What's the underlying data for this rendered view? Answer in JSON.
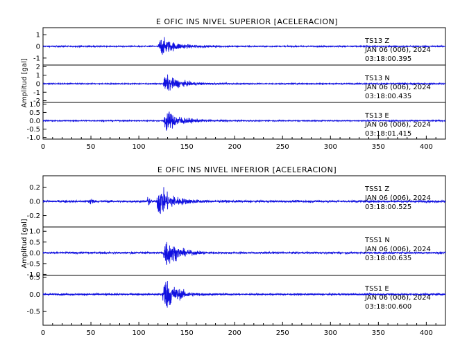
{
  "chart_data": [
    {
      "type": "line",
      "title": "E OFIC INS NIVEL SUPERIOR [ACELERACION]",
      "ylabel": "Amplitud [gal]",
      "xlabel": "",
      "xlim": [
        0,
        420
      ],
      "x_ticks": [
        "0",
        "50",
        "100",
        "150",
        "200",
        "250",
        "300",
        "350",
        "400"
      ],
      "line_color": "#1010e0",
      "grid": false,
      "traces": [
        {
          "station": "TS13",
          "component": "Z",
          "date": "JAN 06 (006), 2024",
          "time": "03:18:00.395",
          "ylim": [
            -1.6,
            1.6
          ],
          "y_ticks": [
            "-1",
            "0",
            "1"
          ],
          "noise": 0.06,
          "event_onset": 120,
          "event_peak": 1.2,
          "event_duration": 45
        },
        {
          "station": "TS13",
          "component": "N",
          "date": "JAN 06 (006), 2024",
          "time": "03:18:00.435",
          "ylim": [
            -2.2,
            2.2
          ],
          "y_ticks": [
            "-2",
            "-1",
            "0",
            "1",
            "2"
          ],
          "noise": 0.08,
          "event_onset": 125,
          "event_peak": 1.5,
          "event_duration": 45
        },
        {
          "station": "TS13",
          "component": "E",
          "date": "JAN 06 (006), 2024",
          "time": "03:18:01.415",
          "ylim": [
            -1.1,
            1.1
          ],
          "y_ticks": [
            "-1.0",
            "-0.5",
            "0.0",
            "0.5",
            "1.0"
          ],
          "noise": 0.04,
          "event_onset": 125,
          "event_peak": 0.95,
          "event_duration": 45
        }
      ]
    },
    {
      "type": "line",
      "title": "E OFIC INS NIVEL INFERIOR [ACELERACION]",
      "ylabel": "Amplitud [gal]",
      "xlabel": "",
      "xlim": [
        0,
        420
      ],
      "x_ticks": [
        "0",
        "50",
        "100",
        "150",
        "200",
        "250",
        "300",
        "350",
        "400"
      ],
      "line_color": "#1010e0",
      "grid": false,
      "traces": [
        {
          "station": "TSS1",
          "component": "Z",
          "date": "JAN 06 (006), 2024",
          "time": "03:18:00.525",
          "ylim": [
            -0.36,
            0.36
          ],
          "y_ticks": [
            "-0.2",
            "0.0",
            "0.2"
          ],
          "noise": 0.018,
          "event_onset": 118,
          "event_peak": 0.33,
          "event_duration": 40,
          "extra_bursts": [
            [
              50,
              0.05
            ],
            [
              110,
              0.06
            ]
          ]
        },
        {
          "station": "TSS1",
          "component": "N",
          "date": "JAN 06 (006), 2024",
          "time": "03:18:00.635",
          "ylim": [
            -1.05,
            1.2
          ],
          "y_ticks": [
            "-1.0",
            "-0.5",
            "0.0",
            "0.5",
            "1.0"
          ],
          "noise": 0.05,
          "event_onset": 125,
          "event_peak": 1.1,
          "event_duration": 35
        },
        {
          "station": "TSS1",
          "component": "E",
          "date": "JAN 06 (006), 2024",
          "time": "03:18:00.600",
          "ylim": [
            -0.9,
            0.55
          ],
          "y_ticks": [
            "-0.5",
            "0.0",
            "0.5"
          ],
          "noise": 0.03,
          "event_onset": 124,
          "event_peak": 0.8,
          "event_duration": 35
        }
      ]
    }
  ]
}
